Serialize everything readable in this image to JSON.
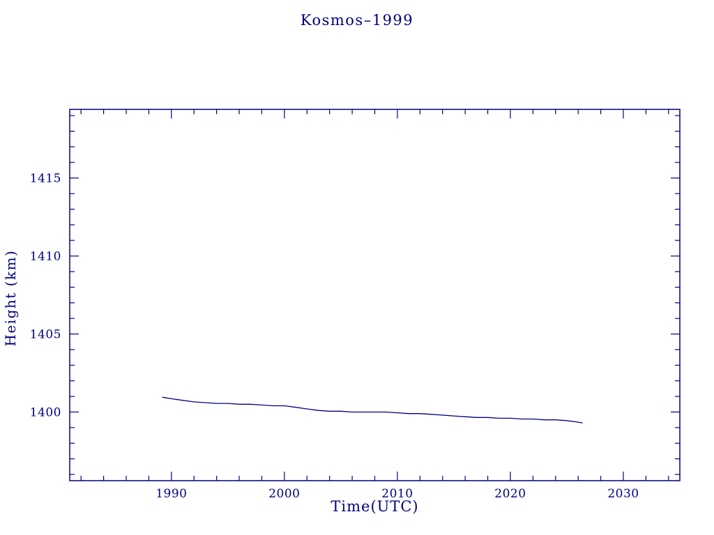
{
  "page": {
    "background": "#ffffff",
    "accent": "#000080"
  },
  "title": "Kosmos–1999",
  "chart_data": {
    "type": "line",
    "title": "Kosmos–1999",
    "xlabel": "Time(UTC)",
    "ylabel": "Height (km)",
    "xlim": [
      1981,
      2035
    ],
    "ylim": [
      1395.6,
      1419.4
    ],
    "xticks": [
      1990,
      2000,
      2010,
      2020,
      2030
    ],
    "yticks": [
      1400,
      1405,
      1410,
      1415
    ],
    "xtick_minor_step": 2,
    "ytick_minor_step": 1,
    "grid": false,
    "legend": "none",
    "line_color": "#000080",
    "series": [
      {
        "name": "height",
        "x": [
          1989.2,
          1990,
          1991,
          1992,
          1993,
          1994,
          1995,
          1996,
          1997,
          1998,
          1999,
          2000,
          2001,
          2002,
          2003,
          2004,
          2005,
          2006,
          2007,
          2008,
          2009,
          2010,
          2011,
          2012,
          2013,
          2014,
          2015,
          2016,
          2017,
          2018,
          2019,
          2020,
          2021,
          2022,
          2023,
          2024,
          2025,
          2026,
          2026.4
        ],
        "y": [
          1400.95,
          1400.85,
          1400.75,
          1400.65,
          1400.6,
          1400.55,
          1400.55,
          1400.5,
          1400.5,
          1400.45,
          1400.4,
          1400.4,
          1400.3,
          1400.2,
          1400.1,
          1400.05,
          1400.05,
          1400.0,
          1400.0,
          1400.0,
          1400.0,
          1399.95,
          1399.9,
          1399.9,
          1399.85,
          1399.8,
          1399.75,
          1399.7,
          1399.65,
          1399.65,
          1399.6,
          1399.6,
          1399.55,
          1399.55,
          1399.5,
          1399.5,
          1399.45,
          1399.35,
          1399.3
        ]
      }
    ]
  }
}
